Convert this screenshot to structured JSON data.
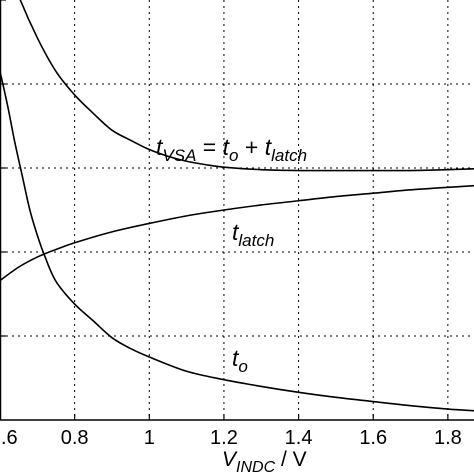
{
  "chart_data": {
    "type": "line",
    "title": "",
    "xlabel": {
      "main": "V",
      "sub": "INDC",
      "unit": "V"
    },
    "ylabel": "",
    "xlim": [
      0.6,
      1.87
    ],
    "ylim": [
      0,
      5
    ],
    "xticks": [
      0.6,
      0.8,
      1.0,
      1.2,
      1.4,
      1.6,
      1.8
    ],
    "xtick_labels": [
      ".6",
      "0.8",
      "1",
      "1.2",
      "1.4",
      "1.6",
      "1.8"
    ],
    "yticks": [
      1,
      2,
      3,
      4,
      5
    ],
    "grid": true,
    "series": [
      {
        "name": "t_VSA",
        "x": [
          0.62,
          0.65,
          0.7,
          0.75,
          0.8,
          0.85,
          0.9,
          0.95,
          1.0,
          1.05,
          1.1,
          1.15,
          1.2,
          1.3,
          1.4,
          1.5,
          1.6,
          1.7,
          1.8,
          1.87
        ],
        "y": [
          5.45,
          5.05,
          4.55,
          4.15,
          3.87,
          3.65,
          3.45,
          3.33,
          3.22,
          3.14,
          3.08,
          3.04,
          3.01,
          2.98,
          2.97,
          2.97,
          2.97,
          2.97,
          2.98,
          2.99
        ]
      },
      {
        "name": "t_latch",
        "x": [
          0.6,
          0.65,
          0.7,
          0.75,
          0.8,
          0.9,
          1.0,
          1.1,
          1.2,
          1.3,
          1.4,
          1.5,
          1.6,
          1.7,
          1.8,
          1.87
        ],
        "y": [
          1.66,
          1.82,
          1.94,
          2.03,
          2.11,
          2.24,
          2.34,
          2.43,
          2.5,
          2.56,
          2.61,
          2.66,
          2.7,
          2.74,
          2.77,
          2.79
        ]
      },
      {
        "name": "t_o",
        "x": [
          0.6,
          0.62,
          0.64,
          0.66,
          0.68,
          0.7,
          0.72,
          0.75,
          0.8,
          0.85,
          0.9,
          0.95,
          1.0,
          1.1,
          1.2,
          1.3,
          1.4,
          1.5,
          1.6,
          1.7,
          1.8,
          1.87
        ],
        "y": [
          4.15,
          3.75,
          3.3,
          2.9,
          2.5,
          2.2,
          1.95,
          1.65,
          1.38,
          1.18,
          0.98,
          0.85,
          0.75,
          0.58,
          0.48,
          0.4,
          0.33,
          0.27,
          0.22,
          0.17,
          0.13,
          0.11
        ]
      }
    ],
    "annotations": {
      "tvsa": {
        "t1": "t",
        "s1": "VSA",
        "eq": " = ",
        "t2": "t",
        "s2": "o",
        "plus": " + ",
        "t3": "t",
        "s3": "latch"
      },
      "tlatch": {
        "t": "t",
        "s": "latch"
      },
      "to": {
        "t": "t",
        "s": "o"
      }
    }
  }
}
